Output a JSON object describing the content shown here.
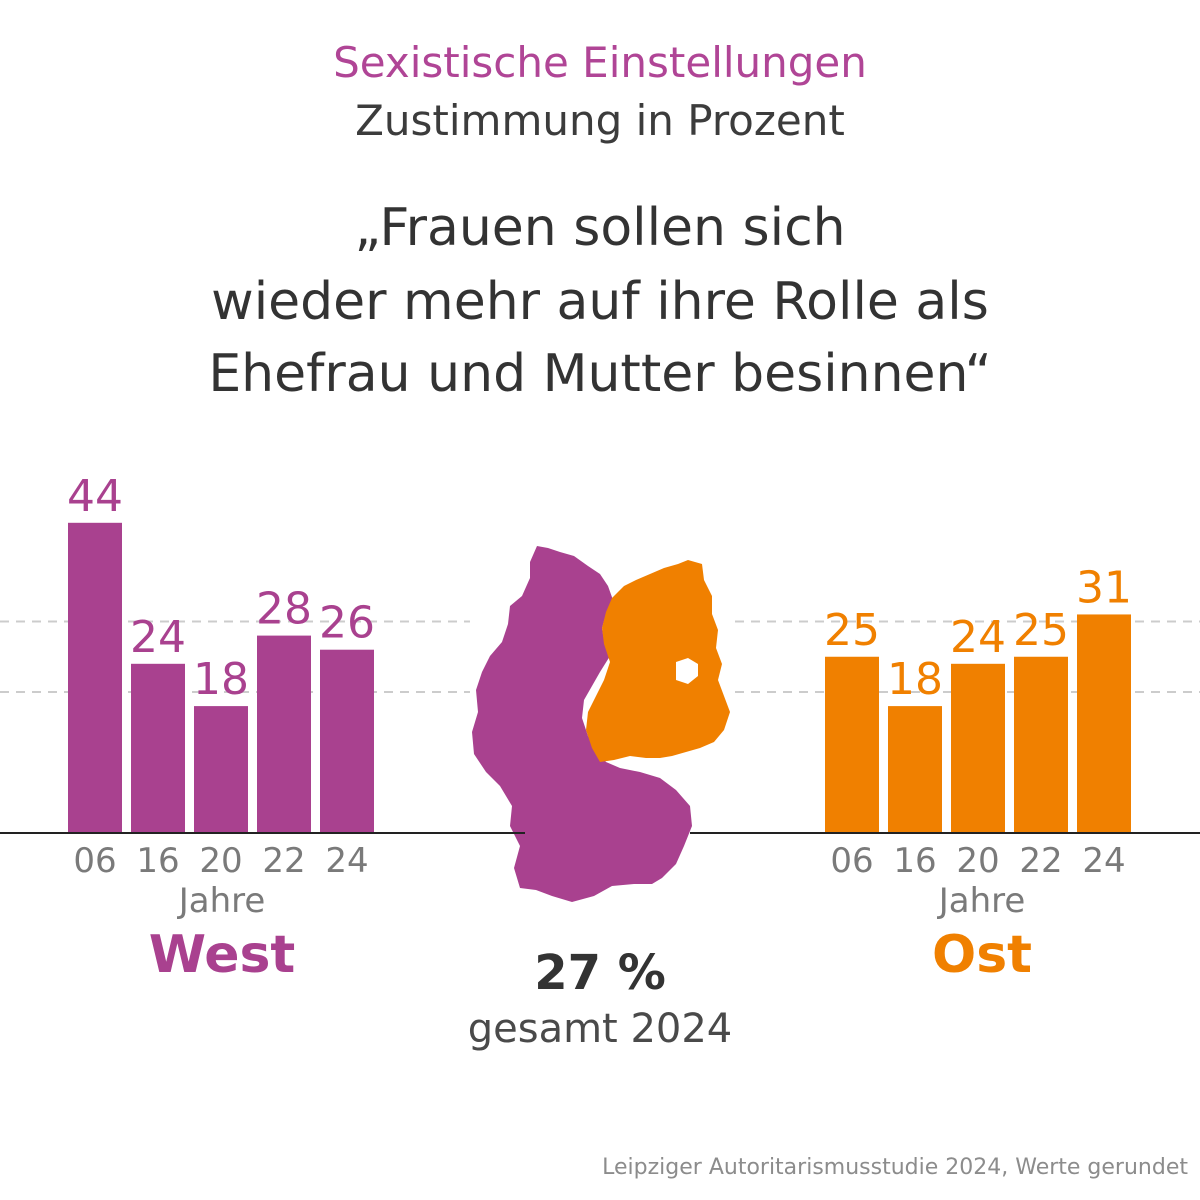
{
  "header": {
    "title": "Sexistische Einstellungen",
    "subtitle": "Zustimmung in Prozent"
  },
  "quote": [
    "„Frauen sollen sich",
    "wieder mehr auf ihre Rolle als",
    "Ehefrau und Mutter besinnen“"
  ],
  "total": {
    "value": "27 %",
    "caption": "gesamt 2024"
  },
  "source": "Leipziger Autoritarismusstudie 2024, Werte gerundet",
  "colors": {
    "west": "#a9418f",
    "ost": "#f08000",
    "axis": "#222222",
    "grid": "#cccccc",
    "tick_text": "#7a7a7a"
  },
  "map": {
    "icon": "germany-map-icon"
  },
  "chart_data": [
    {
      "type": "bar",
      "title": "West",
      "xlabel": "Jahre",
      "categories": [
        "06",
        "16",
        "20",
        "22",
        "24"
      ],
      "values": [
        44,
        24,
        18,
        28,
        26
      ],
      "ylim": [
        0,
        45
      ],
      "grid": true,
      "data_labels": [
        "44",
        "24",
        "18",
        "28",
        "26"
      ]
    },
    {
      "type": "bar",
      "title": "Ost",
      "xlabel": "Jahre",
      "categories": [
        "06",
        "16",
        "20",
        "22",
        "24"
      ],
      "values": [
        25,
        18,
        24,
        25,
        31
      ],
      "ylim": [
        0,
        45
      ],
      "grid": true,
      "data_labels": [
        "25",
        "18",
        "24",
        "25",
        "31"
      ]
    }
  ]
}
